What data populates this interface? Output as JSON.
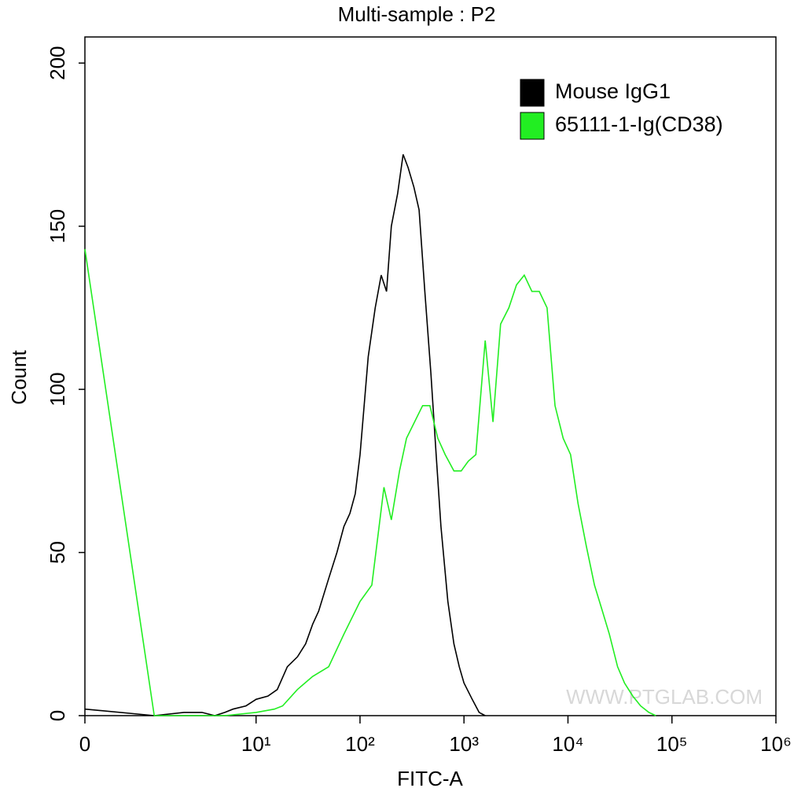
{
  "chart_data": {
    "type": "line",
    "title": "Multi-sample : P2",
    "xlabel": "FITC-A",
    "ylabel": "Count",
    "xscale": "biexponential",
    "xlim": [
      0,
      1000000
    ],
    "xticks": [
      0,
      {
        "value": 10,
        "label": "10¹"
      },
      {
        "value": 100,
        "label": "10²"
      },
      {
        "value": 1000,
        "label": "10³"
      },
      {
        "value": 10000,
        "label": "10⁴"
      },
      {
        "value": 100000,
        "label": "10⁵"
      },
      {
        "value": 1000000,
        "label": "10⁶"
      }
    ],
    "ylim": [
      0,
      208
    ],
    "yticks": [
      0,
      50,
      100,
      150,
      200
    ],
    "legend": "top-right",
    "watermark": "WWW.PTGLAB.COM",
    "series": [
      {
        "name": "Mouse IgG1",
        "color": "#000000",
        "x": [
          0,
          1,
          2,
          3,
          4,
          5,
          6,
          8,
          10,
          13,
          16,
          20,
          25,
          30,
          35,
          40,
          50,
          60,
          70,
          80,
          90,
          100,
          120,
          140,
          160,
          180,
          200,
          230,
          260,
          290,
          330,
          370,
          420,
          480,
          540,
          600,
          700,
          800,
          900,
          1000,
          1200,
          1400,
          1600
        ],
        "values": [
          2,
          0,
          1,
          1,
          0,
          1,
          2,
          3,
          5,
          6,
          8,
          15,
          18,
          22,
          28,
          32,
          42,
          50,
          58,
          62,
          68,
          80,
          110,
          125,
          135,
          130,
          150,
          160,
          172,
          168,
          162,
          155,
          130,
          105,
          80,
          58,
          35,
          22,
          15,
          10,
          5,
          1,
          0
        ]
      },
      {
        "name": "65111-1-Ig(CD38)",
        "color": "#22ee22",
        "x": [
          0,
          1,
          5,
          10,
          15,
          18,
          25,
          35,
          50,
          70,
          100,
          130,
          170,
          200,
          240,
          280,
          400,
          470,
          560,
          660,
          800,
          940,
          1100,
          1300,
          1600,
          1900,
          2250,
          2700,
          3200,
          3800,
          4500,
          5300,
          6300,
          7500,
          9000,
          10600,
          12500,
          15000,
          18000,
          21000,
          25000,
          30000,
          35000,
          42000,
          50000,
          60000,
          70000
        ],
        "values": [
          143,
          0,
          0,
          1,
          2,
          3,
          8,
          12,
          15,
          25,
          35,
          40,
          70,
          60,
          75,
          85,
          95,
          95,
          85,
          80,
          75,
          75,
          78,
          80,
          115,
          90,
          120,
          125,
          132,
          135,
          130,
          130,
          125,
          95,
          85,
          80,
          65,
          52,
          40,
          33,
          25,
          15,
          10,
          6,
          3,
          1,
          0
        ]
      }
    ]
  }
}
